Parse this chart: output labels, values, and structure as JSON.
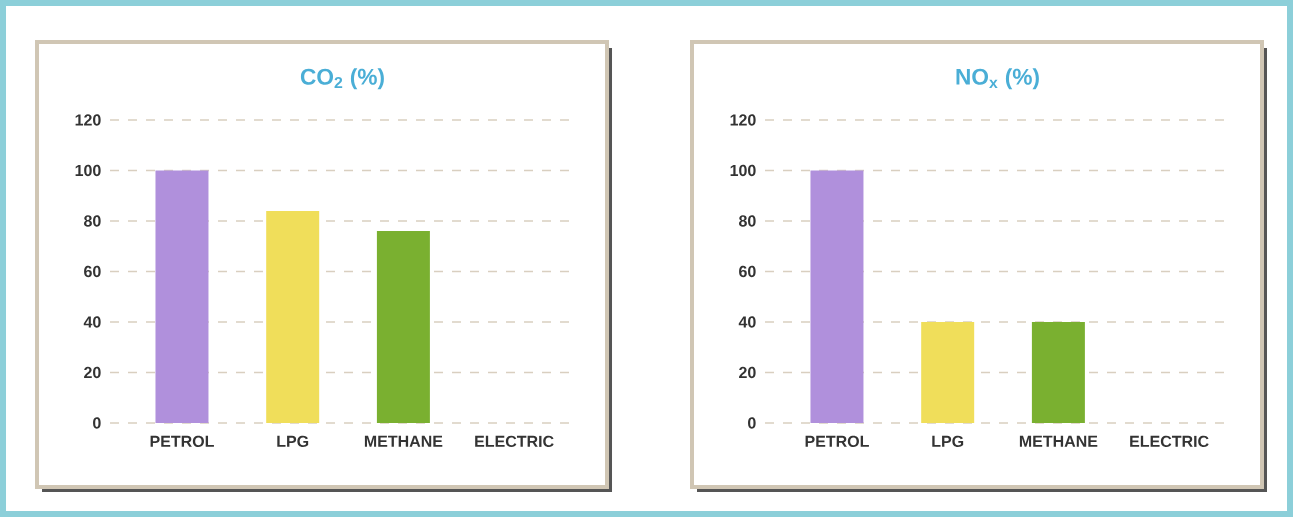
{
  "chart_data": [
    {
      "type": "bar",
      "title": "CO$_{2}$ (%)",
      "categories": [
        "PETROL",
        "LPG",
        "METHANE",
        "ELECTRIC"
      ],
      "values": [
        100,
        84,
        76,
        0
      ],
      "colors": [
        "#b090dc",
        "#f0de5a",
        "#7ab030",
        "#7ab030"
      ],
      "ylim": [
        0,
        120
      ],
      "yticks": [
        0,
        20,
        40,
        60,
        80,
        100,
        120
      ],
      "grid": "y"
    },
    {
      "type": "bar",
      "title": "NO$_{x}$ (%)",
      "categories": [
        "PETROL",
        "LPG",
        "METHANE",
        "ELECTRIC"
      ],
      "values": [
        100,
        40,
        40,
        0
      ],
      "colors": [
        "#b090dc",
        "#f0de5a",
        "#7ab030",
        "#7ab030"
      ],
      "ylim": [
        0,
        120
      ],
      "yticks": [
        0,
        20,
        40,
        60,
        80,
        100,
        120
      ],
      "grid": "y"
    }
  ]
}
